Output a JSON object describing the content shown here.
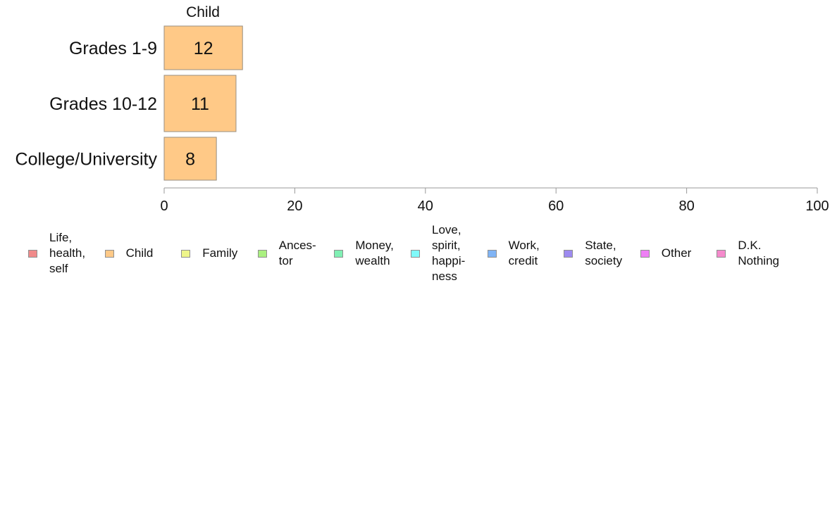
{
  "chart_data": {
    "type": "bar",
    "orientation": "horizontal",
    "title": "Child",
    "categories": [
      "Grades 1-9",
      "Grades 10-12",
      "College/University"
    ],
    "series": [
      {
        "name": "Child",
        "values": [
          12,
          11,
          8
        ],
        "color": "#FFC987"
      }
    ],
    "xlim": [
      0,
      100
    ],
    "x_ticks": [
      0,
      20,
      40,
      60,
      80,
      100
    ],
    "grid": false,
    "legend_placement": "bottom",
    "legend": [
      {
        "label": "Life,\nhealth,\nself",
        "color": "#F08A8A"
      },
      {
        "label": "Child",
        "color": "#FFC987"
      },
      {
        "label": "Family",
        "color": "#EEF58A"
      },
      {
        "label": "Ances-\ntor",
        "color": "#AAF080"
      },
      {
        "label": "Money,\nwealth",
        "color": "#80F0B4"
      },
      {
        "label": "Love,\nspirit,\nhappi-\nness",
        "color": "#80FAFA"
      },
      {
        "label": "Work,\ncredit",
        "color": "#80B4F5"
      },
      {
        "label": "State,\nsociety",
        "color": "#9D8AF0"
      },
      {
        "label": "Other",
        "color": "#EE80F5"
      },
      {
        "label": "D.K.\nNothing",
        "color": "#F58ACC"
      }
    ]
  }
}
